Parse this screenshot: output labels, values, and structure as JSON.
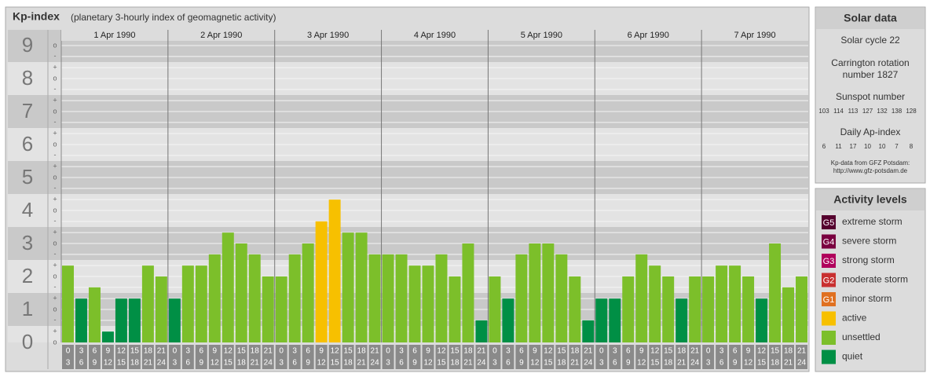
{
  "header": {
    "title": "Kp-index",
    "subtitle": "(planetary 3-hourly index of geomagnetic activity)"
  },
  "chart_data": {
    "type": "bar",
    "days": [
      "1 Apr 1990",
      "2 Apr 1990",
      "3 Apr 1990",
      "4 Apr 1990",
      "5 Apr 1990",
      "6 Apr 1990",
      "7 Apr 1990"
    ],
    "hours_from": [
      0,
      3,
      6,
      9,
      12,
      15,
      18,
      21
    ],
    "hours_to": [
      3,
      6,
      9,
      12,
      15,
      18,
      21,
      24
    ],
    "values": [
      2.33,
      1.33,
      1.67,
      0.33,
      1.33,
      1.33,
      2.33,
      2,
      1.33,
      2.33,
      2.33,
      2.67,
      3.33,
      3,
      2.67,
      2,
      2,
      2.67,
      3,
      3.67,
      4.33,
      3.33,
      3.33,
      2.67,
      2.67,
      2.67,
      2.33,
      2.33,
      2.67,
      2,
      3,
      0.67,
      2,
      1.33,
      2.67,
      3,
      3,
      2.67,
      2,
      0.67,
      1.33,
      1.33,
      2,
      2.67,
      2.33,
      2,
      1.33,
      2,
      2,
      2.33,
      2.33,
      2,
      1.33,
      3,
      1.67,
      2
    ],
    "colors": [
      "#7cbf2a",
      "#008f45",
      "#7cbf2a",
      "#008f45",
      "#008f45",
      "#008f45",
      "#7cbf2a",
      "#7cbf2a",
      "#008f45",
      "#7cbf2a",
      "#7cbf2a",
      "#7cbf2a",
      "#7cbf2a",
      "#7cbf2a",
      "#7cbf2a",
      "#7cbf2a",
      "#7cbf2a",
      "#7cbf2a",
      "#7cbf2a",
      "#f7c000",
      "#f7c000",
      "#7cbf2a",
      "#7cbf2a",
      "#7cbf2a",
      "#7cbf2a",
      "#7cbf2a",
      "#7cbf2a",
      "#7cbf2a",
      "#7cbf2a",
      "#7cbf2a",
      "#7cbf2a",
      "#008f45",
      "#7cbf2a",
      "#008f45",
      "#7cbf2a",
      "#7cbf2a",
      "#7cbf2a",
      "#7cbf2a",
      "#7cbf2a",
      "#008f45",
      "#008f45",
      "#008f45",
      "#7cbf2a",
      "#7cbf2a",
      "#7cbf2a",
      "#7cbf2a",
      "#008f45",
      "#7cbf2a",
      "#7cbf2a",
      "#7cbf2a",
      "#7cbf2a",
      "#7cbf2a",
      "#008f45",
      "#7cbf2a",
      "#7cbf2a",
      "#7cbf2a"
    ],
    "ylim": [
      0,
      9
    ],
    "yticks": [
      0,
      1,
      2,
      3,
      4,
      5,
      6,
      7,
      8,
      9
    ],
    "minor_yticks": [
      {
        "value": 0,
        "label": "o"
      },
      {
        "value": 0.33,
        "label": "+"
      },
      {
        "value": 0.67,
        "label": "-"
      },
      {
        "value": 1,
        "label": "o"
      },
      {
        "value": 1.33,
        "label": "+"
      },
      {
        "value": 1.67,
        "label": "-"
      },
      {
        "value": 2,
        "label": "o"
      },
      {
        "value": 2.33,
        "label": "+"
      },
      {
        "value": 2.67,
        "label": "-"
      },
      {
        "value": 3,
        "label": "o"
      },
      {
        "value": 3.33,
        "label": "+"
      },
      {
        "value": 3.67,
        "label": "-"
      },
      {
        "value": 4,
        "label": "o"
      },
      {
        "value": 4.33,
        "label": "+"
      },
      {
        "value": 4.67,
        "label": "-"
      },
      {
        "value": 5,
        "label": "o"
      },
      {
        "value": 5.33,
        "label": "+"
      },
      {
        "value": 5.67,
        "label": "-"
      },
      {
        "value": 6,
        "label": "o"
      },
      {
        "value": 6.33,
        "label": "+"
      },
      {
        "value": 6.67,
        "label": "-"
      },
      {
        "value": 7,
        "label": "o"
      },
      {
        "value": 7.33,
        "label": "+"
      },
      {
        "value": 7.67,
        "label": "-"
      },
      {
        "value": 8,
        "label": "o"
      },
      {
        "value": 8.33,
        "label": "+"
      },
      {
        "value": 8.67,
        "label": "-"
      },
      {
        "value": 9,
        "label": "o"
      }
    ],
    "grid": true
  },
  "solar_data": {
    "title": "Solar data",
    "cycle": "Solar cycle 22",
    "carrington": [
      "Carrington rotation",
      "number 1827"
    ],
    "sunspot_title": "Sunspot number",
    "sunspot_numbers": [
      103,
      114,
      113,
      127,
      132,
      138,
      128
    ],
    "ap_title": "Daily Ap-index",
    "ap_values": [
      6,
      11,
      17,
      10,
      10,
      7,
      8
    ],
    "source": [
      "Kp-data from GFZ Potsdam:",
      "http://www.gfz-potsdam.de"
    ]
  },
  "activity_levels": {
    "title": "Activity levels",
    "items": [
      {
        "badge": "G5",
        "label": "extreme storm",
        "color": "#55002e"
      },
      {
        "badge": "G4",
        "label": "severe storm",
        "color": "#7a0040"
      },
      {
        "badge": "G3",
        "label": "strong storm",
        "color": "#b0005c"
      },
      {
        "badge": "G2",
        "label": "moderate storm",
        "color": "#c83030"
      },
      {
        "badge": "G1",
        "label": "minor storm",
        "color": "#e07020"
      },
      {
        "badge": null,
        "label": "active",
        "color": "#f7c000"
      },
      {
        "badge": null,
        "label": "unsettled",
        "color": "#7cbf2a"
      },
      {
        "badge": null,
        "label": "quiet",
        "color": "#008f45"
      }
    ]
  }
}
